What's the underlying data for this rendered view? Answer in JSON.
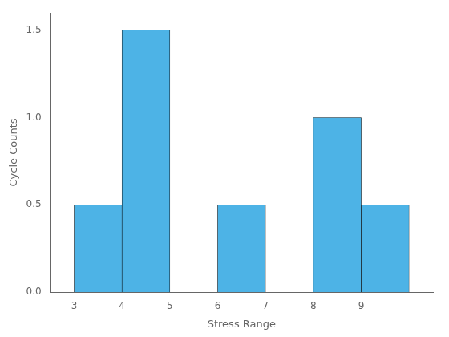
{
  "chart_data": {
    "type": "histogram",
    "bins": [
      3,
      4,
      5,
      6,
      7,
      8,
      9,
      10
    ],
    "values": [
      0.5,
      1.5,
      0.0,
      0.5,
      0.0,
      1.0,
      0.5
    ],
    "color": "#4db3e6",
    "xlabel": "Stress Range",
    "ylabel": "Cycle Counts",
    "xlim": [
      2.5,
      10.5
    ],
    "ylim": [
      0,
      1.6
    ],
    "xticks": [
      3,
      4,
      5,
      6,
      7,
      8,
      9
    ],
    "yticks": [
      {
        "value": 0,
        "label": "0.0"
      },
      {
        "value": 0.5,
        "label": "0.5"
      },
      {
        "value": 1.0,
        "label": "1.0"
      },
      {
        "value": 1.5,
        "label": "1.5"
      }
    ],
    "grid": false
  }
}
